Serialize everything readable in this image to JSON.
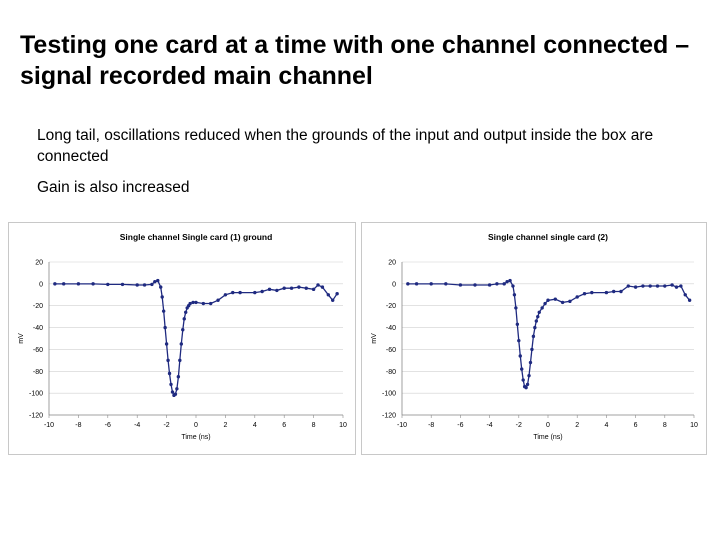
{
  "slide": {
    "title": "Testing one card at a time with one channel connected – signal recorded main channel",
    "bullets": [
      "Long tail, oscillations reduced when the grounds of the input and output inside the box are connected",
      "Gain is also increased"
    ]
  },
  "chart_data": [
    {
      "type": "scatter",
      "title": "Single channel Single card (1) ground",
      "xlabel": "Time (ns)",
      "ylabel": "mV",
      "xlim": [
        -10,
        10
      ],
      "ylim": [
        -120,
        20
      ],
      "x_ticks": [
        -10,
        -8,
        -6,
        -4,
        -2,
        0,
        2,
        4,
        6,
        8,
        10
      ],
      "y_ticks": [
        20,
        0,
        -20,
        -40,
        -60,
        -80,
        -100,
        -120
      ],
      "grid": true,
      "marker_color": "#1f2a80",
      "series": [
        {
          "x": [
            -9.6,
            -9.0,
            -8.0,
            -7.0,
            -6.0,
            -5.0,
            -4.0,
            -3.5,
            -3.0,
            -2.8,
            -2.6,
            -2.4,
            -2.3,
            -2.2,
            -2.1,
            -2.0,
            -1.9,
            -1.8,
            -1.7,
            -1.6,
            -1.5,
            -1.4,
            -1.3,
            -1.2,
            -1.1,
            -1.0,
            -0.9,
            -0.8,
            -0.7,
            -0.6,
            -0.5,
            -0.4,
            -0.2,
            0.0,
            0.5,
            1.0,
            1.5,
            2.0,
            2.5,
            3.0,
            4.0,
            4.5,
            5.0,
            5.5,
            6.0,
            6.5,
            7.0,
            7.5,
            8.0,
            8.3,
            8.6,
            9.0,
            9.3,
            9.6
          ],
          "y": [
            0,
            0,
            0,
            0,
            -0.5,
            -0.5,
            -1,
            -1,
            -0.5,
            2,
            3,
            -3,
            -12,
            -25,
            -40,
            -55,
            -70,
            -82,
            -92,
            -99,
            -102,
            -101,
            -96,
            -85,
            -70,
            -55,
            -42,
            -32,
            -26,
            -22,
            -20,
            -18,
            -17,
            -17,
            -18,
            -18,
            -15,
            -10,
            -8,
            -8,
            -8,
            -7,
            -5,
            -6,
            -4,
            -4,
            -3,
            -4,
            -5,
            -1,
            -3,
            -10,
            -15,
            -9
          ]
        }
      ]
    },
    {
      "type": "scatter",
      "title": "Single channel single card (2)",
      "xlabel": "Time (ns)",
      "ylabel": "mV",
      "xlim": [
        -10,
        10
      ],
      "ylim": [
        -120,
        20
      ],
      "x_ticks": [
        -10,
        -8,
        -6,
        -4,
        -2,
        0,
        2,
        4,
        6,
        8,
        10
      ],
      "y_ticks": [
        20,
        0,
        -20,
        -40,
        -60,
        -80,
        -100,
        -120
      ],
      "grid": true,
      "marker_color": "#1f2a80",
      "series": [
        {
          "x": [
            -9.6,
            -9.0,
            -8.0,
            -7.0,
            -6.0,
            -5.0,
            -4.0,
            -3.5,
            -3.0,
            -2.8,
            -2.6,
            -2.4,
            -2.3,
            -2.2,
            -2.1,
            -2.0,
            -1.9,
            -1.8,
            -1.7,
            -1.6,
            -1.5,
            -1.4,
            -1.3,
            -1.2,
            -1.1,
            -1.0,
            -0.9,
            -0.8,
            -0.7,
            -0.6,
            -0.4,
            -0.2,
            0.0,
            0.5,
            1.0,
            1.5,
            2.0,
            2.5,
            3.0,
            4.0,
            4.5,
            5.0,
            5.5,
            6.0,
            6.5,
            7.0,
            7.5,
            8.0,
            8.5,
            8.8,
            9.1,
            9.4,
            9.7
          ],
          "y": [
            0,
            0,
            0,
            0,
            -1,
            -1,
            -1,
            0,
            0,
            2,
            3,
            -2,
            -10,
            -22,
            -37,
            -52,
            -66,
            -78,
            -88,
            -94,
            -95,
            -92,
            -84,
            -72,
            -60,
            -48,
            -40,
            -34,
            -30,
            -26,
            -22,
            -18,
            -15,
            -14,
            -17,
            -16,
            -12,
            -9,
            -8,
            -8,
            -7,
            -7,
            -2,
            -3,
            -2,
            -2,
            -2,
            -2,
            -1,
            -3,
            -2,
            -10,
            -15
          ]
        }
      ]
    }
  ]
}
